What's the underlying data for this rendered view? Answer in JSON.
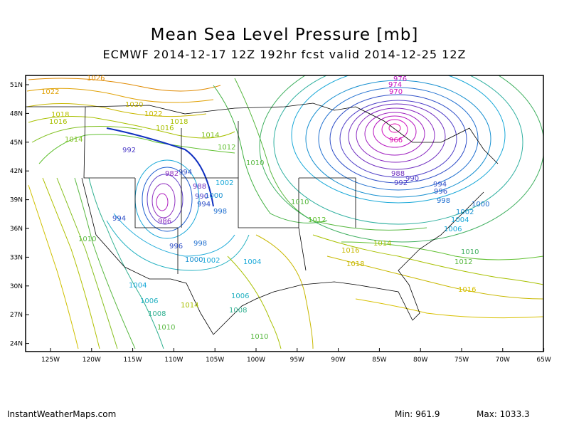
{
  "title": "Mean Sea Level Pressure [mb]",
  "subtitle": "ECMWF 2014-12-17 12Z 192hr fcst valid 2014-12-25 12Z",
  "footer": {
    "site": "InstantWeatherMaps.com",
    "min": "Min: 961.9",
    "max": "Max: 1033.3"
  },
  "axes": {
    "lat_labels": [
      "51N",
      "48N",
      "45N",
      "42N",
      "39N",
      "36N",
      "33N",
      "30N",
      "27N",
      "24N"
    ],
    "lon_labels": [
      "125W",
      "120W",
      "115W",
      "110W",
      "105W",
      "100W",
      "95W",
      "90W",
      "85W",
      "80W",
      "75W",
      "70W",
      "65W"
    ]
  },
  "contour_labels": [
    "1026",
    "1022",
    "1020",
    "1018",
    "1016",
    "1014",
    "1012",
    "1010",
    "1008",
    "1006",
    "1004",
    "1002",
    "1000",
    "998",
    "996",
    "994",
    "992",
    "990",
    "988",
    "986",
    "982",
    "976",
    "974",
    "970",
    "966"
  ],
  "colors": {
    "high": "#e08a00",
    "mid": "#48b848",
    "low": "#18a8d8",
    "deep": "#1030c0",
    "min": "#b020c0"
  }
}
